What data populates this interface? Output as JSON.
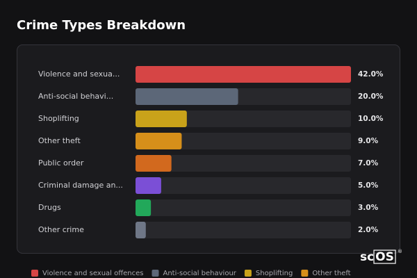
{
  "chart_data": {
    "type": "bar",
    "orientation": "horizontal",
    "title": "Crime Types Breakdown",
    "categories": [
      "Violence and sexua...",
      "Anti-social behavi...",
      "Shoplifting",
      "Other theft",
      "Public order",
      "Criminal damage an...",
      "Drugs",
      "Other crime"
    ],
    "values": [
      42,
      20,
      10,
      9,
      7,
      5,
      3,
      2
    ],
    "value_labels": [
      "42.0%",
      "20.0%",
      "10.0%",
      "9.0%",
      "7.0%",
      "5.0%",
      "3.0%",
      "2.0%"
    ],
    "colors": [
      "#d64545",
      "#5c6778",
      "#c9a21a",
      "#d68f1a",
      "#d2691e",
      "#7b4fd6",
      "#22a85a",
      "#6f7787"
    ],
    "xlim": [
      0,
      42
    ],
    "legend": [
      {
        "name": "Violence and sexual offences",
        "color": "#d64545"
      },
      {
        "name": "Anti-social behaviour",
        "color": "#5c6778"
      },
      {
        "name": "Shoplifting",
        "color": "#c9a21a"
      },
      {
        "name": "Other theft",
        "color": "#d68f1a"
      }
    ]
  },
  "logo": {
    "prefix": "sc",
    "boxed": "OS",
    "mark": "®"
  }
}
